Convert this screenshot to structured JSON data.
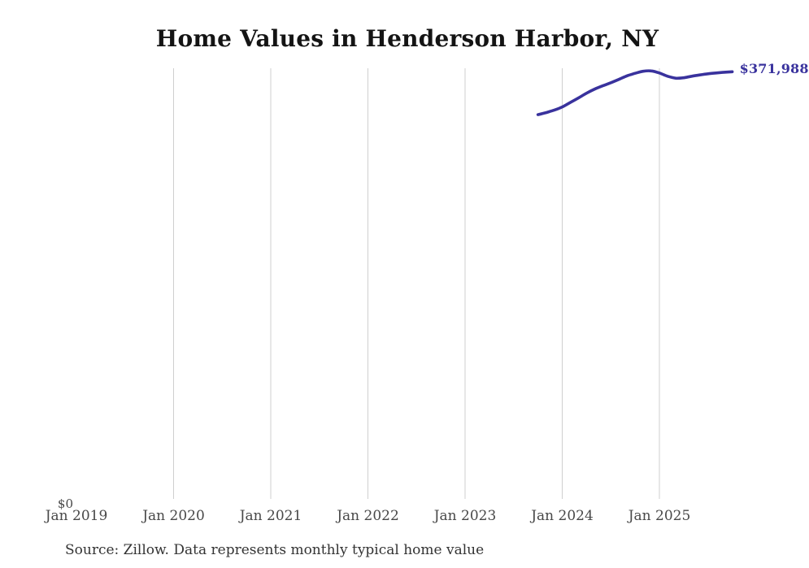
{
  "page": {
    "background": "#ffffff"
  },
  "chart_data": {
    "type": "line",
    "title": "Home Values in Henderson Harbor, NY",
    "source_note": "Source: Zillow. Data represents monthly typical home value",
    "end_label": "$371,988",
    "line_color": "#39329d",
    "grid_color": "#cfcfcf",
    "grid": true,
    "legend": false,
    "x_axis": {
      "start_year": 2019,
      "ticks": [
        "Jan 2019",
        "Jan 2020",
        "Jan 2021",
        "Jan 2022",
        "Jan 2023",
        "Jan 2024",
        "Jan 2025"
      ]
    },
    "y_axis": {
      "zero_label": "$0",
      "min": 0,
      "axis_max": 375000
    },
    "series": [
      {
        "name": "Monthly typical home value",
        "months": [
          "2023-10",
          "2023-11",
          "2023-12",
          "2024-01",
          "2024-02",
          "2024-03",
          "2024-04",
          "2024-05",
          "2024-06",
          "2024-07",
          "2024-08",
          "2024-09",
          "2024-10",
          "2024-11",
          "2024-12",
          "2025-01",
          "2025-02",
          "2025-03",
          "2025-04",
          "2025-05",
          "2025-06",
          "2025-07",
          "2025-08",
          "2025-09",
          "2025-10"
        ],
        "values": [
          334600,
          336400,
          338500,
          341300,
          345200,
          349100,
          353300,
          356800,
          359700,
          362400,
          365300,
          368400,
          370600,
          372400,
          372700,
          370900,
          368100,
          366400,
          366700,
          368100,
          369200,
          370200,
          370900,
          371500,
          371988
        ]
      }
    ]
  }
}
